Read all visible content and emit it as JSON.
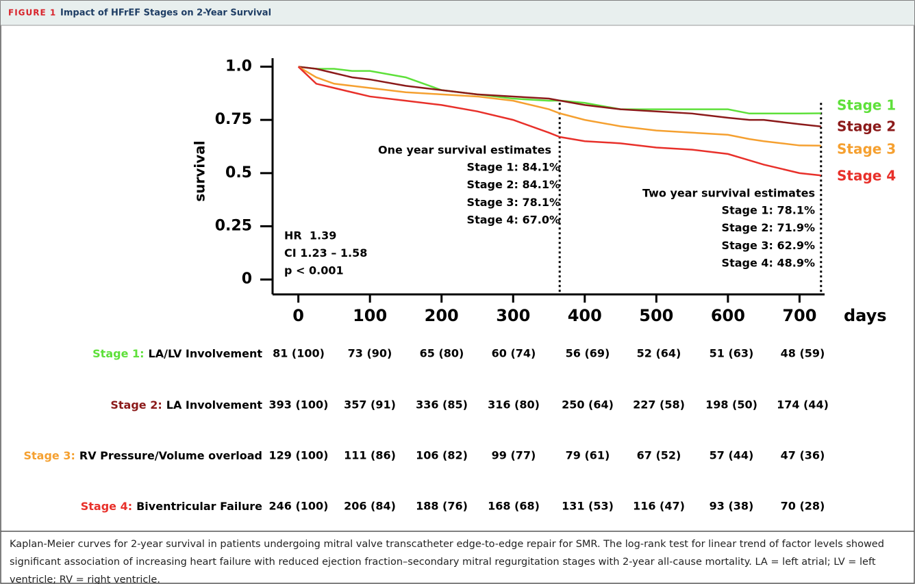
{
  "header": {
    "label": "FIGURE 1",
    "title": "Impact of HFrEF Stages on 2-Year Survival"
  },
  "chart_data": {
    "type": "line",
    "ylabel": "survival",
    "xlabel": "days",
    "x": [
      0,
      25,
      50,
      75,
      100,
      150,
      200,
      250,
      300,
      350,
      365,
      400,
      450,
      500,
      550,
      600,
      630,
      650,
      700,
      730
    ],
    "series": [
      {
        "name": "Stage 1",
        "color": "#5ee03a",
        "values": [
          1.0,
          0.99,
          0.99,
          0.98,
          0.98,
          0.95,
          0.89,
          0.87,
          0.85,
          0.84,
          0.841,
          0.83,
          0.8,
          0.8,
          0.8,
          0.8,
          0.78,
          0.78,
          0.78,
          0.781
        ]
      },
      {
        "name": "Stage 2",
        "color": "#8b1a1a",
        "values": [
          1.0,
          0.99,
          0.97,
          0.95,
          0.94,
          0.91,
          0.89,
          0.87,
          0.86,
          0.85,
          0.841,
          0.82,
          0.8,
          0.79,
          0.78,
          0.76,
          0.75,
          0.75,
          0.73,
          0.719
        ]
      },
      {
        "name": "Stage 3",
        "color": "#f5a030",
        "values": [
          1.0,
          0.95,
          0.92,
          0.91,
          0.9,
          0.88,
          0.87,
          0.86,
          0.84,
          0.8,
          0.781,
          0.75,
          0.72,
          0.7,
          0.69,
          0.68,
          0.66,
          0.65,
          0.63,
          0.629
        ]
      },
      {
        "name": "Stage 4",
        "color": "#e8302a",
        "values": [
          1.0,
          0.92,
          0.9,
          0.88,
          0.86,
          0.84,
          0.82,
          0.79,
          0.75,
          0.69,
          0.67,
          0.65,
          0.64,
          0.62,
          0.61,
          0.59,
          0.56,
          0.54,
          0.5,
          0.489
        ]
      }
    ],
    "xlim": [
      -36,
      735
    ],
    "ylim": [
      -0.07,
      1.04
    ],
    "xticks": [
      0,
      100,
      200,
      300,
      400,
      500,
      600,
      700
    ],
    "yticks": [
      {
        "value": 1,
        "label": "1.0"
      },
      0.75,
      0.5,
      0.25,
      0
    ],
    "vlines": [
      365,
      730
    ],
    "annotations": {
      "one_year": {
        "title": "One year survival estimates",
        "lines": [
          "Stage 1: 84.1%",
          "Stage 2: 84.1%",
          "Stage 3: 78.1%",
          "Stage 4: 67.0%"
        ]
      },
      "two_year": {
        "title": "Two year survival estimates",
        "lines": [
          "Stage 1: 78.1%",
          "Stage 2: 71.9%",
          "Stage 3: 62.9%",
          "Stage 4: 48.9%"
        ]
      },
      "stats": [
        "HR  1.39",
        "CI 1.23 – 1.58",
        "p < 0.001"
      ]
    }
  },
  "risk_table": {
    "rows": [
      {
        "stage": "Stage 1:",
        "label": "LA/LV Involvement",
        "cells": [
          "81 (100)",
          "73 (90)",
          "65 (80)",
          "60 (74)",
          "56 (69)",
          "52 (64)",
          "51 (63)",
          "48 (59)"
        ]
      },
      {
        "stage": "Stage 2:",
        "label": "LA Involvement",
        "cells": [
          "393 (100)",
          "357 (91)",
          "336 (85)",
          "316 (80)",
          "250 (64)",
          "227 (58)",
          "198 (50)",
          "174 (44)"
        ]
      },
      {
        "stage": "Stage 3:",
        "label": "RV Pressure/Volume overload",
        "cells": [
          "129 (100)",
          "111 (86)",
          "106 (82)",
          "99 (77)",
          "79 (61)",
          "67 (52)",
          "57 (44)",
          "47 (36)"
        ]
      },
      {
        "stage": "Stage 4:",
        "label": "Biventricular Failure",
        "cells": [
          "246 (100)",
          "206 (84)",
          "188 (76)",
          "168 (68)",
          "131 (53)",
          "116 (47)",
          "93 (38)",
          "70 (28)"
        ]
      }
    ]
  },
  "caption": "Kaplan-Meier curves for 2-year survival in patients undergoing mitral valve transcatheter edge-to-edge repair for SMR. The log-rank test for linear trend of factor levels showed significant association of increasing heart failure with reduced ejection fraction–secondary mitral regurgitation stages with 2-year all-cause mortality. LA = left atrial; LV = left ventricle; RV = right ventricle."
}
